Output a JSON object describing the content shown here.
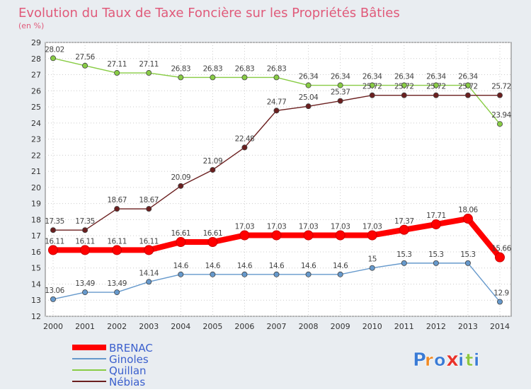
{
  "title": "Evolution du Taux de Taxe Foncière sur les Propriétés Bâties",
  "subtitle": "(en %)",
  "logo": {
    "text": "Proxiti",
    "letters": [
      "P",
      "r",
      "o",
      "x",
      "i",
      "t",
      "i"
    ]
  },
  "chart_data": {
    "type": "line",
    "x": [
      "2000",
      "2001",
      "2002",
      "2003",
      "2004",
      "2005",
      "2006",
      "2007",
      "2008",
      "2009",
      "2010",
      "2011",
      "2012",
      "2013",
      "2014"
    ],
    "ylim": [
      12,
      29
    ],
    "yticks": [
      "12",
      "13",
      "14",
      "15",
      "16",
      "17",
      "18",
      "19",
      "20",
      "21",
      "22",
      "23",
      "24",
      "25",
      "26",
      "27",
      "28",
      "29"
    ],
    "grid": true,
    "legend_position": "bottom-left",
    "series": [
      {
        "name": "BRENAC",
        "color": "#ff0000",
        "values": [
          16.11,
          16.11,
          16.11,
          16.11,
          16.61,
          16.61,
          17.03,
          17.03,
          17.03,
          17.03,
          17.03,
          17.37,
          17.71,
          18.06,
          15.66
        ],
        "labels": [
          "16.11",
          "16.11",
          "16.11",
          "16.11",
          "16.61",
          "16.61",
          "17.03",
          "17.03",
          "17.03",
          "17.03",
          "17.03",
          "17.37",
          "17.71",
          "18.06",
          "15.66"
        ]
      },
      {
        "name": "Ginoles",
        "color": "#6699cc",
        "values": [
          13.06,
          13.49,
          13.49,
          14.14,
          14.6,
          14.6,
          14.6,
          14.6,
          14.6,
          14.6,
          15,
          15.3,
          15.3,
          15.3,
          12.9
        ],
        "labels": [
          "13.06",
          "13.49",
          "13.49",
          "14.14",
          "14.6",
          "14.6",
          "14.6",
          "14.6",
          "14.6",
          "14.6",
          "15",
          "15.3",
          "15.3",
          "15.3",
          "12.9"
        ]
      },
      {
        "name": "Quillan",
        "color": "#88cc44",
        "values": [
          28.02,
          27.56,
          27.11,
          27.11,
          26.83,
          26.83,
          26.83,
          26.83,
          26.34,
          26.34,
          26.34,
          26.34,
          26.34,
          26.34,
          23.94
        ],
        "labels": [
          "28.02",
          "27.56",
          "27.11",
          "27.11",
          "26.83",
          "26.83",
          "26.83",
          "26.83",
          "26.34",
          "26.34",
          "26.34",
          "26.34",
          "26.34",
          "26.34",
          "23.94"
        ]
      },
      {
        "name": "Nébias",
        "color": "#6b1f1f",
        "values": [
          17.35,
          17.35,
          18.67,
          18.67,
          20.09,
          21.09,
          22.48,
          24.77,
          25.04,
          25.37,
          25.72,
          25.72,
          25.72,
          25.72,
          25.72
        ],
        "labels": [
          "17.35",
          "17.35",
          "18.67",
          "18.67",
          "20.09",
          "21.09",
          "22.48",
          "24.77",
          "25.04",
          "25.37",
          "25.72",
          "25.72",
          "25.72",
          "25.72",
          "25.72"
        ]
      }
    ]
  }
}
